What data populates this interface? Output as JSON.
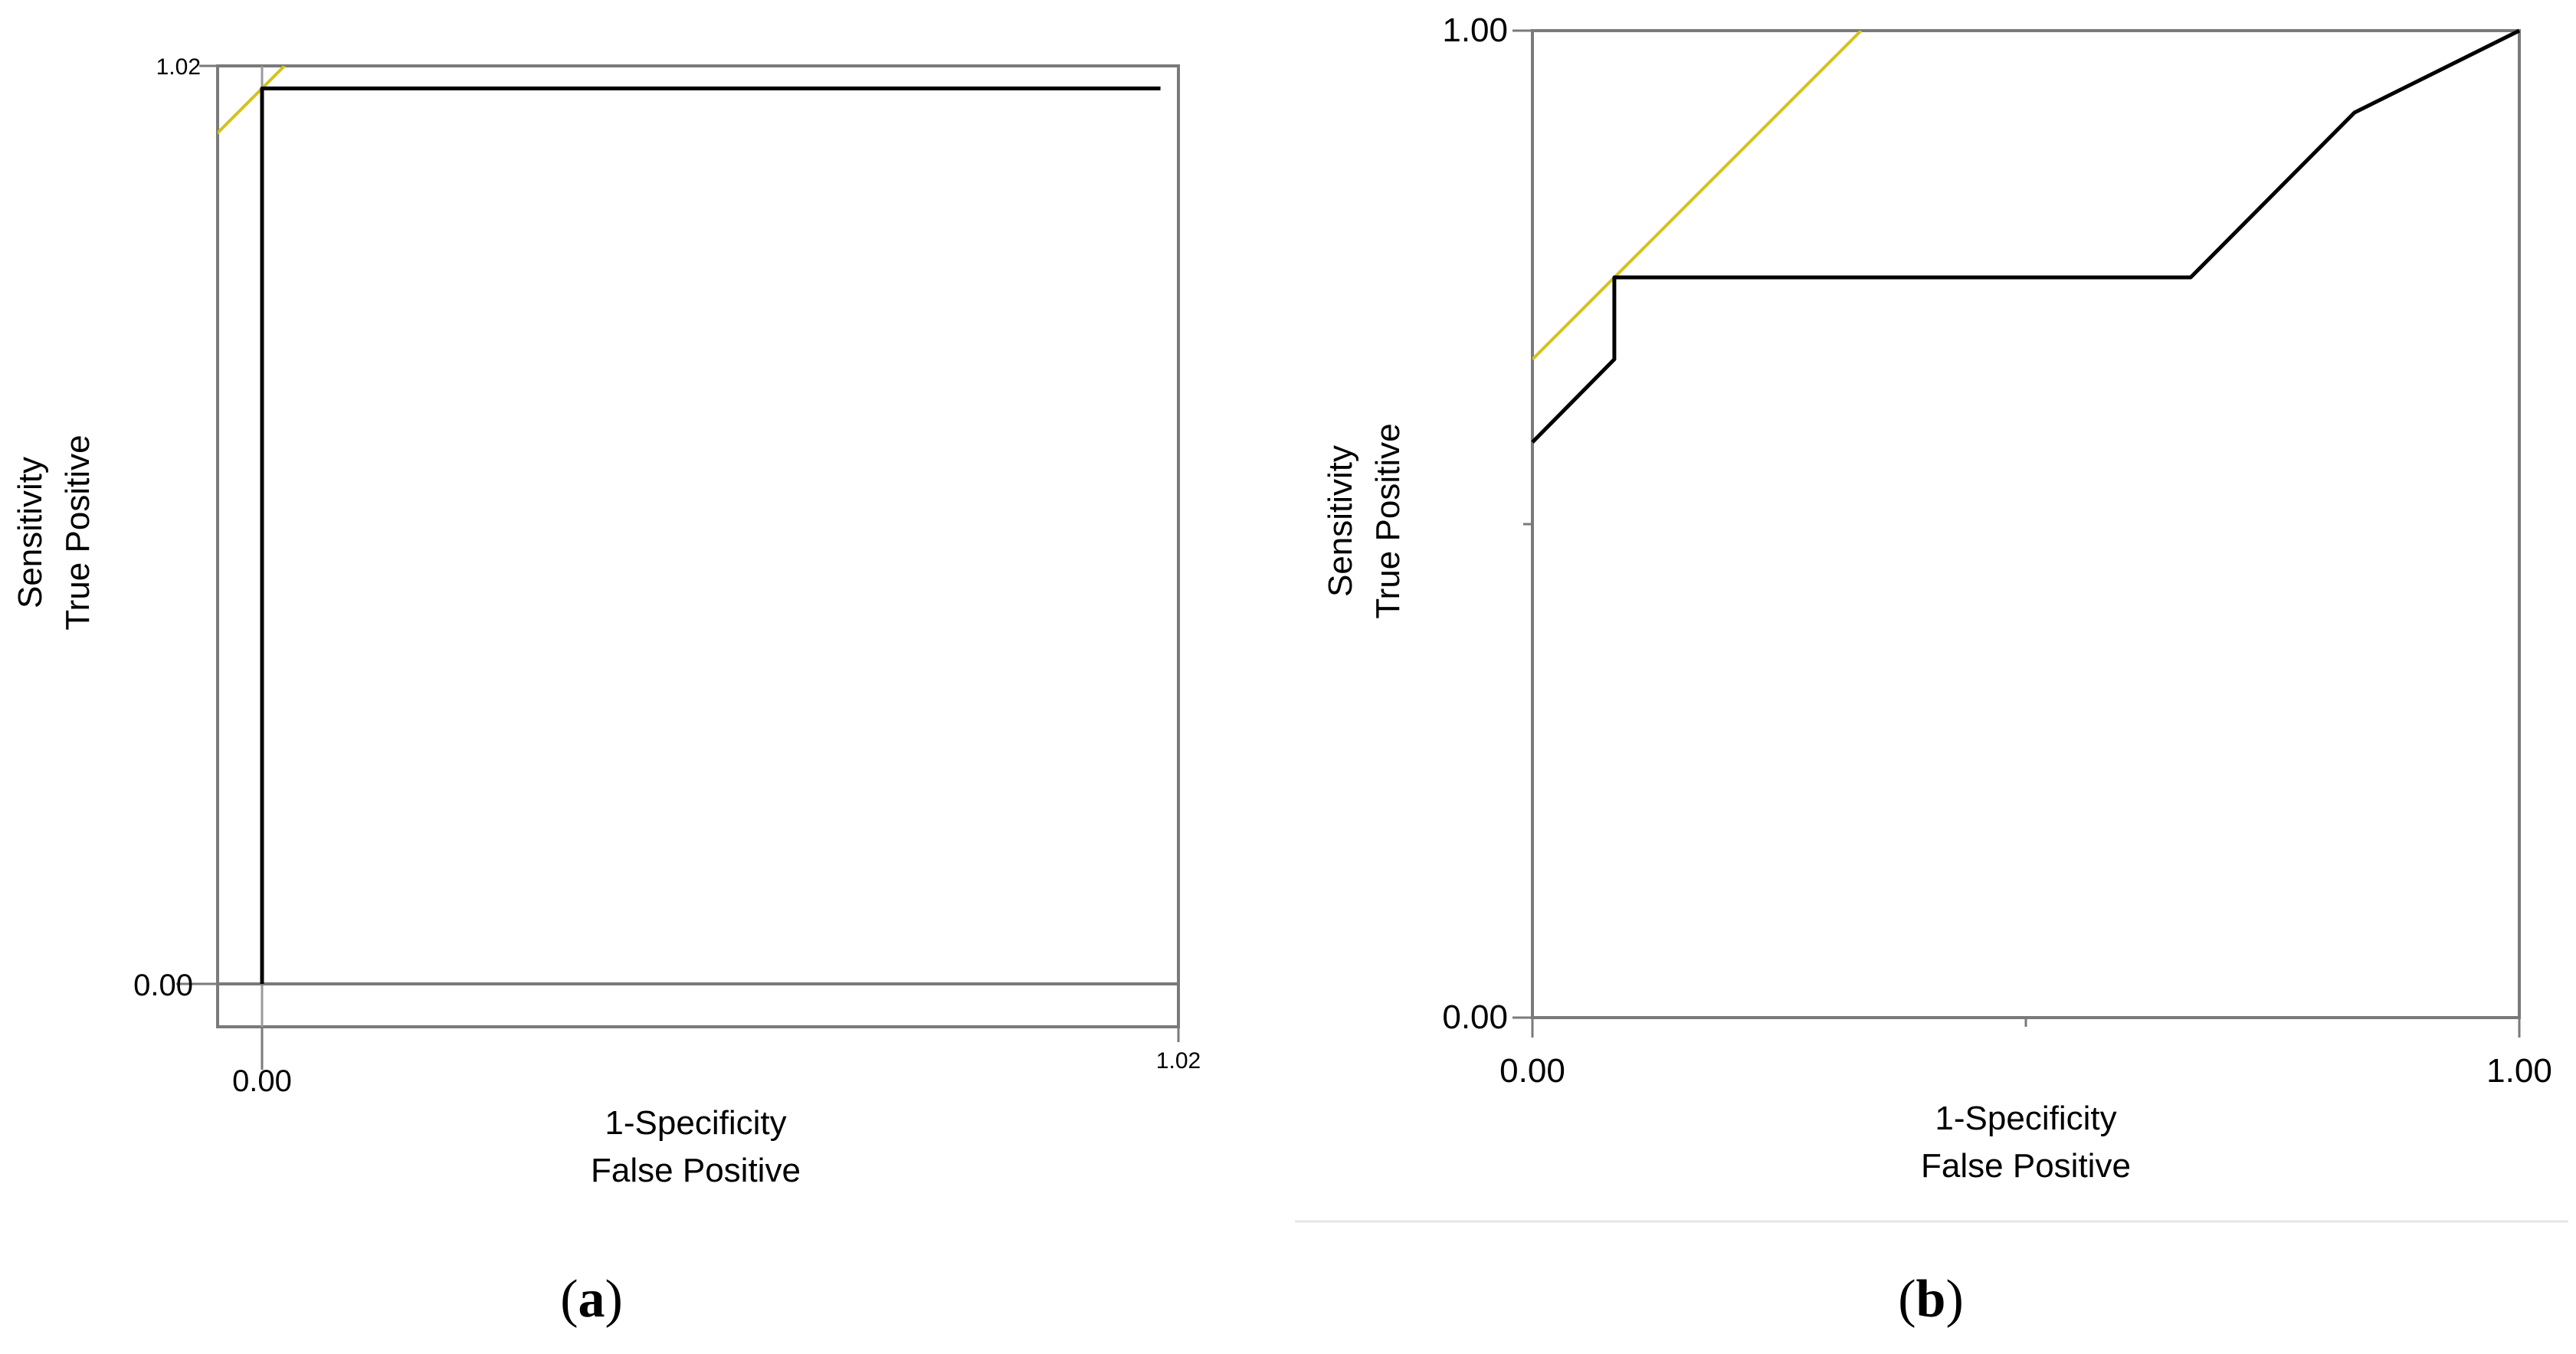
{
  "chart_data": [
    {
      "type": "line",
      "panel_label": "a",
      "xlabel": [
        "1-Specificity",
        "False Positive"
      ],
      "ylabel": [
        "Sensitivity",
        "True Positive"
      ],
      "xlim": [
        0,
        1.02
      ],
      "ylim": [
        0,
        1.02
      ],
      "x_ticks": [
        "0.00",
        "1.02"
      ],
      "y_ticks": [
        "0.00",
        "1.02"
      ],
      "line_color": "#000000",
      "ref_color": "#d4c21c",
      "series": [
        {
          "x": [
            0.0,
            0.0,
            1.0
          ],
          "y": [
            0.0,
            0.995,
            0.995
          ]
        }
      ],
      "reference": {
        "x": [
          -0.05,
          0.025
        ],
        "y": [
          0.945,
          1.02
        ]
      }
    },
    {
      "type": "line",
      "panel_label": "b",
      "xlabel": [
        "1-Specificity",
        "False Positive"
      ],
      "ylabel": [
        "Sensitivity",
        "True Positive"
      ],
      "xlim": [
        0,
        1
      ],
      "ylim": [
        0,
        1
      ],
      "x_ticks": [
        "0.00",
        "1.00"
      ],
      "y_ticks": [
        "0.00",
        "1.00"
      ],
      "line_color": "#000000",
      "ref_color": "#d4c21c",
      "series": [
        {
          "x": [
            0.0,
            0.083,
            0.083,
            0.667,
            0.833,
            1.0
          ],
          "y": [
            0.583,
            0.667,
            0.75,
            0.75,
            0.917,
            1.0
          ]
        }
      ],
      "reference": {
        "x": [
          0.0,
          0.333
        ],
        "y": [
          0.667,
          1.0
        ]
      }
    }
  ]
}
